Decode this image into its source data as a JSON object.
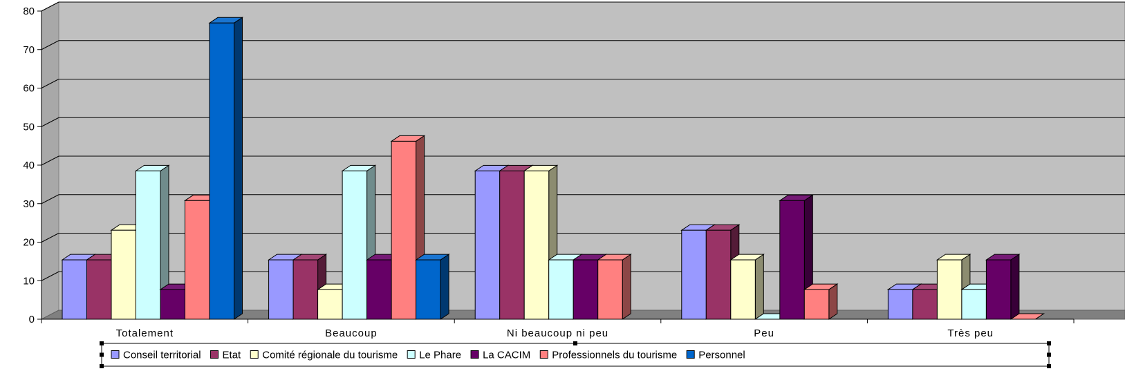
{
  "chart_data": {
    "type": "bar",
    "variant": "3d-clustered",
    "categories": [
      "Totalement",
      "Beaucoup",
      "Ni beaucoup ni peu",
      "Peu",
      "Très peu"
    ],
    "ylim": [
      0,
      80
    ],
    "yticks": [
      0,
      10,
      20,
      30,
      40,
      50,
      60,
      70,
      80
    ],
    "grid": true,
    "legend_position": "bottom",
    "series": [
      {
        "name": "Conseil territorial",
        "color": "#9999ff",
        "values": [
          15.4,
          15.4,
          38.5,
          23.1,
          7.7
        ]
      },
      {
        "name": "Etat",
        "color": "#993366",
        "values": [
          15.4,
          15.4,
          38.5,
          23.1,
          7.7
        ]
      },
      {
        "name": "Comité régionale du tourisme",
        "color": "#ffffcc",
        "values": [
          23.1,
          7.7,
          38.5,
          15.4,
          15.4
        ]
      },
      {
        "name": "Le Phare",
        "color": "#ccffff",
        "values": [
          38.5,
          38.5,
          15.4,
          0,
          7.7
        ]
      },
      {
        "name": "La CACIM",
        "color": "#660066",
        "values": [
          7.7,
          15.4,
          15.4,
          30.8,
          15.4
        ]
      },
      {
        "name": "Professionnels du tourisme",
        "color": "#ff8080",
        "values": [
          30.8,
          46.2,
          15.4,
          7.7,
          0
        ]
      },
      {
        "name": "Personnel",
        "color": "#0066cc",
        "values": [
          76.9,
          15.4,
          null,
          null,
          null
        ]
      }
    ]
  }
}
